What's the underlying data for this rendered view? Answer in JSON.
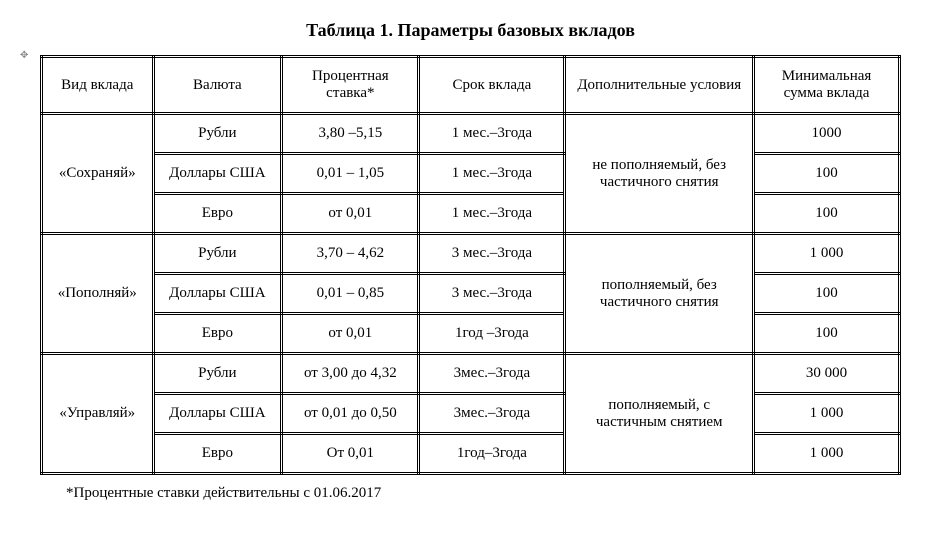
{
  "title": "Таблица 1. Параметры базовых вкладов",
  "columns": {
    "c1": "Вид вклада",
    "c2": "Валюта",
    "c3": "Процентная ставка*",
    "c4": "Срок вклада",
    "c5": "Дополнительные условия",
    "c6": "Минимальная сумма вклада"
  },
  "groups": [
    {
      "name": "«Сохраняй»",
      "conditions": "не пополняемый, без частичного снятия",
      "rows": [
        {
          "currency": "Рубли",
          "rate": "3,80 –5,15",
          "term": "1 мес.–3года",
          "min": "1000"
        },
        {
          "currency": "Доллары США",
          "rate": "0,01 – 1,05",
          "term": "1 мес.–3года",
          "min": "100"
        },
        {
          "currency": "Евро",
          "rate": "от 0,01",
          "term": "1 мес.–3года",
          "min": "100"
        }
      ]
    },
    {
      "name": "«Пополняй»",
      "conditions": "пополняемый, без частичного снятия",
      "rows": [
        {
          "currency": "Рубли",
          "rate": "3,70 – 4,62",
          "term": "3 мес.–3года",
          "min": "1 000"
        },
        {
          "currency": "Доллары США",
          "rate": "0,01 – 0,85",
          "term": "3 мес.–3года",
          "min": "100"
        },
        {
          "currency": "Евро",
          "rate": "от 0,01",
          "term": "1год –3года",
          "min": "100"
        }
      ]
    },
    {
      "name": "«Управляй»",
      "conditions": "пополняемый, с частичным снятием",
      "rows": [
        {
          "currency": "Рубли",
          "rate": "от 3,00 до 4,32",
          "term": "3мес.–3года",
          "min": "30 000"
        },
        {
          "currency": "Доллары США",
          "rate": "от 0,01 до 0,50",
          "term": "3мес.–3года",
          "min": "1 000"
        },
        {
          "currency": "Евро",
          "rate": "От 0,01",
          "term": "1год–3года",
          "min": "1 000"
        }
      ]
    }
  ],
  "footnote": "*Процентные ставки действительны с 01.06.2017",
  "styling": {
    "font_family": "Times New Roman",
    "title_fontsize": 18,
    "title_fontweight": "bold",
    "cell_fontsize": 15,
    "footnote_fontsize": 15,
    "text_color": "#000000",
    "background_color": "#ffffff",
    "border_color": "#000000",
    "border_style": "double",
    "border_width": 3,
    "column_widths_pct": [
      13,
      15,
      16,
      17,
      22,
      17
    ],
    "cell_padding_v": 10,
    "cell_padding_h": 6,
    "text_align": "center",
    "vertical_align": "middle"
  }
}
